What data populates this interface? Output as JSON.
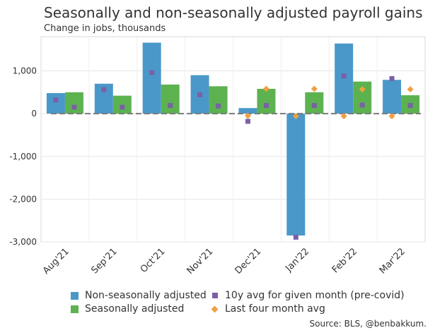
{
  "title": "Seasonally and non-seasonally adjusted payroll gains",
  "subtitle": "Change in jobs, thousands",
  "source": "Source: BLS, @benbakkum.",
  "legend": {
    "nsa": "Non-seasonally adjusted",
    "sa": "Seasonally adjusted",
    "avg10": "10y avg for given month (pre-covid)",
    "avg4": "Last four month avg"
  },
  "colors": {
    "nsa": "#4a98c9",
    "sa": "#5cb24f",
    "avg10": "#7b5fa8",
    "avg4": "#f0a040"
  },
  "chart_data": {
    "type": "bar",
    "categories": [
      "Aug'21",
      "Sep'21",
      "Oct'21",
      "Nov'21",
      "Dec'21",
      "Jan'22",
      "Feb'22",
      "Mar'22"
    ],
    "ylim": [
      -3000,
      1800
    ],
    "yticks": [
      -3000,
      -2000,
      -1000,
      0,
      1000
    ],
    "ytick_labels": [
      "-3,000",
      "-2,000",
      "-1,000",
      "0",
      "1,000"
    ],
    "grid": true,
    "series": [
      {
        "name": "Non-seasonally adjusted",
        "type": "bar",
        "values": [
          480,
          700,
          1660,
          900,
          130,
          -2850,
          1640,
          790
        ]
      },
      {
        "name": "Seasonally adjusted",
        "type": "bar",
        "values": [
          500,
          420,
          680,
          640,
          580,
          500,
          750,
          430
        ]
      },
      {
        "name": "10y avg for given month (pre-covid)",
        "type": "scatter",
        "marker": "square",
        "values": [
          320,
          560,
          960,
          440,
          -180,
          -2890,
          880,
          820
        ]
      },
      {
        "name": "Last four month avg",
        "type": "scatter",
        "marker": "diamond",
        "values": [
          null,
          null,
          null,
          null,
          580,
          580,
          570,
          570
        ]
      }
    ],
    "secondary_points": {
      "avg4": [
        null,
        null,
        null,
        null,
        -50,
        -60,
        -60,
        -60
      ],
      "avg10": [
        150,
        150,
        190,
        180,
        190,
        190,
        200,
        190
      ]
    }
  }
}
